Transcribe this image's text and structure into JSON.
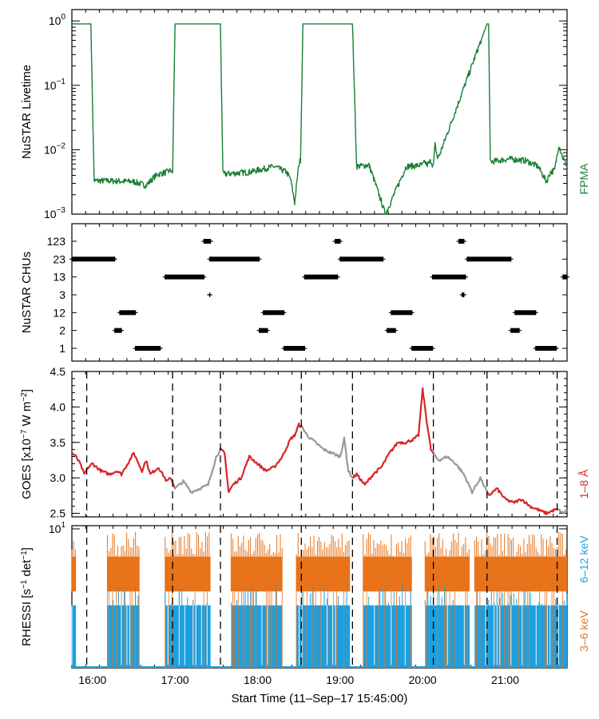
{
  "chart_data": [
    {
      "type": "line",
      "panel": "livetime",
      "ylabel": "NuSTAR Livetime",
      "yscale": "log",
      "ylim": [
        0.001,
        1.5
      ],
      "yticks": [
        {
          "value": 1,
          "label": "10^0"
        },
        {
          "value": 0.1,
          "label": "10^-1"
        },
        {
          "value": 0.01,
          "label": "10^-2"
        },
        {
          "value": 0.001,
          "label": "10^-3"
        }
      ],
      "legend": {
        "label": "FPMA",
        "color": "#1a7f37",
        "placement": "right"
      },
      "series": [
        {
          "name": "FPMA",
          "color": "#1a7f37",
          "x": [
            15.75,
            15.98,
            16.02,
            16.2,
            16.5,
            16.65,
            16.75,
            16.8,
            16.9,
            16.95,
            16.97,
            17.0,
            17.55,
            17.58,
            17.6,
            17.9,
            18.2,
            18.35,
            18.4,
            18.45,
            18.5,
            18.52,
            18.55,
            19.15,
            19.2,
            19.35,
            19.4,
            19.55,
            19.8,
            20.0,
            20.03,
            20.05,
            20.08,
            20.1,
            20.13,
            20.15,
            20.18,
            20.2,
            20.78,
            20.8,
            20.82,
            21.05,
            21.25,
            21.4,
            21.5,
            21.55,
            21.6,
            21.65,
            21.7,
            21.75
          ],
          "y": [
            0.9,
            0.9,
            0.0033,
            0.0033,
            0.0032,
            0.0028,
            0.0038,
            0.0042,
            0.0045,
            0.0048,
            0.0043,
            0.9,
            0.9,
            0.0042,
            0.0042,
            0.0045,
            0.0055,
            0.0045,
            0.0035,
            0.0015,
            0.006,
            0.007,
            0.9,
            0.9,
            0.0055,
            0.0058,
            0.0038,
            0.001,
            0.0055,
            0.0058,
            0.0065,
            0.0058,
            0.0062,
            0.0068,
            0.0055,
            0.012,
            0.0075,
            0.008,
            0.9,
            0.9,
            0.0065,
            0.0072,
            0.0068,
            0.0055,
            0.0032,
            0.0045,
            0.0048,
            0.012,
            0.0075,
            0.0055
          ]
        }
      ]
    },
    {
      "type": "scatter",
      "panel": "chus",
      "ylabel": "NuSTAR CHUs",
      "categories": [
        "1",
        "2",
        "12",
        "3",
        "13",
        "23",
        "123"
      ],
      "segments": [
        {
          "chu": "23",
          "start": 15.75,
          "end": 16.27
        },
        {
          "chu": "2",
          "start": 16.27,
          "end": 16.35
        },
        {
          "chu": "12",
          "start": 16.33,
          "end": 16.52
        },
        {
          "chu": "1",
          "start": 16.52,
          "end": 16.82
        },
        {
          "chu": "13",
          "start": 16.88,
          "end": 17.35
        },
        {
          "chu": "3",
          "start": 17.42,
          "end": 17.42
        },
        {
          "chu": "123",
          "start": 17.35,
          "end": 17.43
        },
        {
          "chu": "23",
          "start": 17.42,
          "end": 18.02
        },
        {
          "chu": "2",
          "start": 18.02,
          "end": 18.12
        },
        {
          "chu": "12",
          "start": 18.07,
          "end": 18.32
        },
        {
          "chu": "1",
          "start": 18.32,
          "end": 18.57
        },
        {
          "chu": "13",
          "start": 18.57,
          "end": 18.97
        },
        {
          "chu": "123",
          "start": 18.94,
          "end": 19.0
        },
        {
          "chu": "23",
          "start": 19.0,
          "end": 19.52
        },
        {
          "chu": "2",
          "start": 19.57,
          "end": 19.67
        },
        {
          "chu": "12",
          "start": 19.62,
          "end": 19.87
        },
        {
          "chu": "1",
          "start": 19.87,
          "end": 20.12
        },
        {
          "chu": "13",
          "start": 20.12,
          "end": 20.52
        },
        {
          "chu": "123",
          "start": 20.44,
          "end": 20.5
        },
        {
          "chu": "3",
          "start": 20.48,
          "end": 20.5
        },
        {
          "chu": "23",
          "start": 20.54,
          "end": 21.07
        },
        {
          "chu": "2",
          "start": 21.07,
          "end": 21.17
        },
        {
          "chu": "12",
          "start": 21.12,
          "end": 21.37
        },
        {
          "chu": "1",
          "start": 21.37,
          "end": 21.62
        },
        {
          "chu": "13",
          "start": 21.7,
          "end": 21.75
        }
      ]
    },
    {
      "type": "line",
      "panel": "goes",
      "ylabel": "GOES [x10^-7 W m^-2]",
      "ylim": [
        2.45,
        4.5
      ],
      "yticks": [
        2.5,
        3.0,
        3.5,
        4.0,
        4.5
      ],
      "legend": {
        "label": "1–8 Å",
        "color": "#d62728",
        "placement": "right"
      },
      "series": [
        {
          "name": "1–8 Å",
          "colors": {
            "in_window": "#d62728",
            "out_window": "#999999"
          },
          "x": [
            15.75,
            15.8,
            15.85,
            15.9,
            15.95,
            16.0,
            16.1,
            16.2,
            16.3,
            16.35,
            16.4,
            16.5,
            16.6,
            16.65,
            16.7,
            16.8,
            16.9,
            16.95,
            17.0,
            17.1,
            17.2,
            17.3,
            17.4,
            17.5,
            17.55,
            17.6,
            17.65,
            17.7,
            17.8,
            17.9,
            18.0,
            18.1,
            18.2,
            18.3,
            18.4,
            18.45,
            18.5,
            18.55,
            18.6,
            18.7,
            18.8,
            18.9,
            19.0,
            19.05,
            19.1,
            19.15,
            19.2,
            19.3,
            19.4,
            19.5,
            19.6,
            19.7,
            19.8,
            19.9,
            19.95,
            20.0,
            20.05,
            20.1,
            20.15,
            20.2,
            20.3,
            20.4,
            20.5,
            20.6,
            20.7,
            20.8,
            20.85,
            20.9,
            21.0,
            21.1,
            21.2,
            21.3,
            21.4,
            21.5,
            21.6,
            21.65,
            21.7,
            21.75
          ],
          "y": [
            3.35,
            3.3,
            3.2,
            3.05,
            3.15,
            3.2,
            3.1,
            3.05,
            3.1,
            3.05,
            3.15,
            3.35,
            3.1,
            3.25,
            3.05,
            3.15,
            2.95,
            3.0,
            2.85,
            2.95,
            2.8,
            2.85,
            2.9,
            3.3,
            3.4,
            3.35,
            2.8,
            2.9,
            3.0,
            3.3,
            3.2,
            3.1,
            3.15,
            3.3,
            3.55,
            3.6,
            3.75,
            3.7,
            3.6,
            3.5,
            3.4,
            3.35,
            3.3,
            3.55,
            3.1,
            3.0,
            3.05,
            2.9,
            3.05,
            3.15,
            3.35,
            3.5,
            3.5,
            3.55,
            3.6,
            4.25,
            3.8,
            3.4,
            3.3,
            3.25,
            3.3,
            3.2,
            3.05,
            2.8,
            3.0,
            2.75,
            2.8,
            2.85,
            2.7,
            2.65,
            2.7,
            2.6,
            2.55,
            2.5,
            2.55,
            2.55,
            2.5,
            2.55
          ]
        }
      ],
      "windows": [
        [
          15.75,
          16.98
        ],
        [
          17.55,
          18.53
        ],
        [
          19.15,
          20.13
        ],
        [
          20.78,
          21.63
        ]
      ]
    },
    {
      "type": "area",
      "panel": "rhessi",
      "ylabel": "RHESSI [s^-1 det^-1]",
      "ylim": [
        0,
        10
      ],
      "yticks": [
        {
          "value": 10,
          "label": "10^1"
        }
      ],
      "series": [
        {
          "name": "3–6 keV",
          "color": "#e8731a",
          "typical": [
            5.5,
            8.0
          ]
        },
        {
          "name": "6–12 keV",
          "color": "#1ca0e0",
          "typical": [
            2.5,
            4.5
          ]
        }
      ],
      "observing_windows": [
        [
          15.75,
          15.8
        ],
        [
          16.18,
          16.57
        ],
        [
          16.88,
          17.43
        ],
        [
          17.68,
          18.3
        ],
        [
          18.47,
          19.12
        ],
        [
          19.28,
          19.87
        ],
        [
          20.03,
          20.57
        ],
        [
          20.63,
          21.75
        ]
      ]
    }
  ],
  "dashed_times": [
    15.93,
    16.97,
    17.55,
    18.53,
    19.15,
    20.13,
    20.78,
    21.63
  ],
  "x_axis": {
    "label": "Start Time (11–Sep–17 15:45:00)",
    "range": [
      15.75,
      21.75
    ],
    "ticks": [
      {
        "value": 16,
        "label": "16:00"
      },
      {
        "value": 17,
        "label": "17:00"
      },
      {
        "value": 18,
        "label": "18:00"
      },
      {
        "value": 19,
        "label": "19:00"
      },
      {
        "value": 20,
        "label": "20:00"
      },
      {
        "value": 21,
        "label": "21:00"
      }
    ]
  }
}
